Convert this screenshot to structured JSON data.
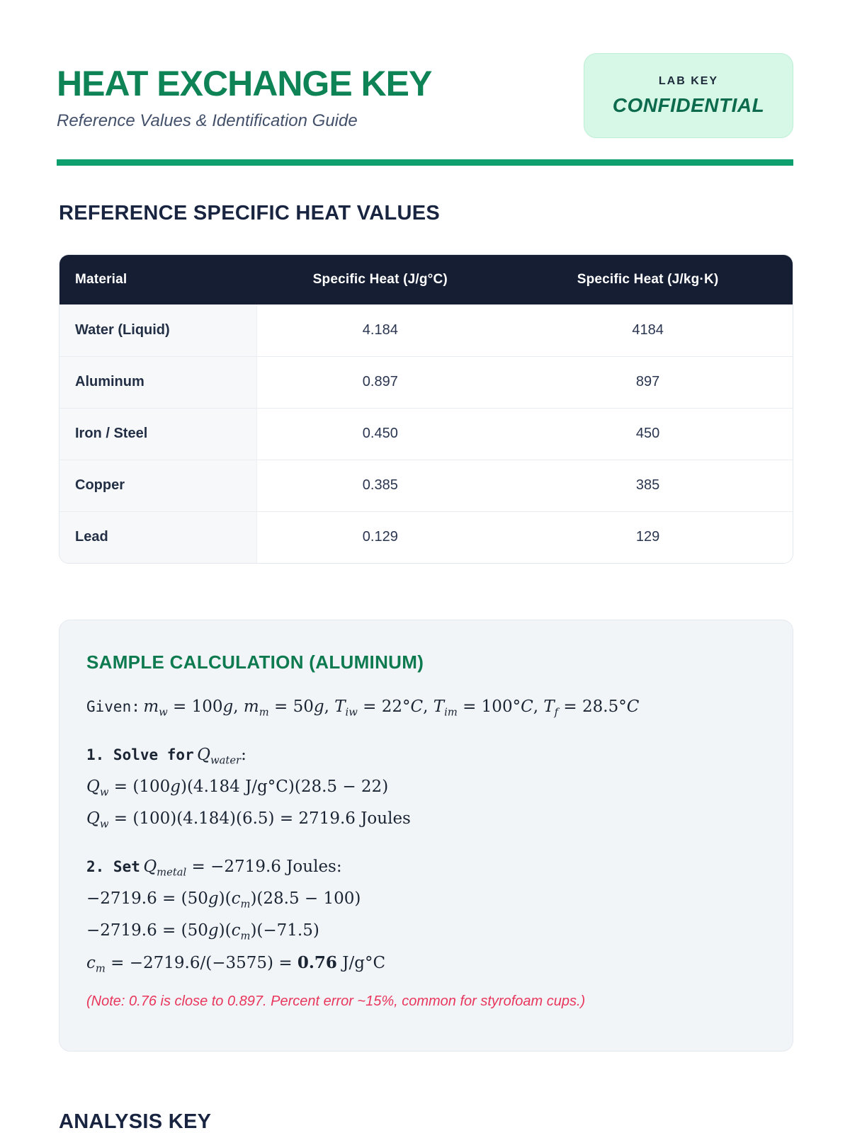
{
  "header": {
    "title": "HEAT EXCHANGE KEY",
    "subtitle": "Reference Values & Identification Guide",
    "badge": {
      "label": "LAB KEY",
      "text": "CONFIDENTIAL"
    }
  },
  "colors": {
    "title_green": "#0E8456",
    "rule_green": "#0E9F6E",
    "confidential_green": "#0B6B4C",
    "badge_bg": "#D7F7E7",
    "table_header_navy": "#161E33",
    "heading_navy": "#182440",
    "note_red": "#E8365C",
    "calc_box_bg": "#F2F5F8"
  },
  "reference_section": {
    "title": "REFERENCE SPECIFIC HEAT VALUES",
    "table": {
      "columns": [
        "Material",
        "Specific Heat (J/g°C)",
        "Specific Heat (J/kg·K)"
      ],
      "rows": [
        {
          "material": "Water (Liquid)",
          "j_g": "4.184",
          "j_kg": "4184"
        },
        {
          "material": "Aluminum",
          "j_g": "0.897",
          "j_kg": "897"
        },
        {
          "material": "Iron / Steel",
          "j_g": "0.450",
          "j_kg": "450"
        },
        {
          "material": "Copper",
          "j_g": "0.385",
          "j_kg": "385"
        },
        {
          "material": "Lead",
          "j_g": "0.129",
          "j_kg": "129"
        }
      ]
    }
  },
  "sample_calc": {
    "title": "SAMPLE CALCULATION (ALUMINUM)",
    "given_label": "Given:",
    "given_math": "<i>m<sub>w</sub></i> = 100<i>g</i>, <i>m<sub>m</sub></i> = 50<i>g</i>, <i>T<sub>iw</sub></i> = 22°<i>C</i>, <i>T<sub>im</sub></i> = 100°<i>C</i>, <i>T<sub>f</sub></i> = 28.5°<i>C</i>",
    "step1": {
      "label": "1. Solve for",
      "label_math": "<i>Q<sub>water</sub></i>:",
      "lines": [
        "<i>Q<sub>w</sub></i> = (100<i>g</i>)(4.184 J/g°C)(28.5 − 22)",
        "<i>Q<sub>w</sub></i> = (100)(4.184)(6.5) = 2719.6 Joules"
      ]
    },
    "step2": {
      "label": "2. Set",
      "label_math": "<i>Q<sub>metal</sub></i> = −2719.6 Joules:",
      "lines": [
        "−2719.6 = (50<i>g</i>)(<i>c<sub>m</sub></i>)(28.5 − 100)",
        "−2719.6 = (50<i>g</i>)(<i>c<sub>m</sub></i>)(−71.5)",
        "<i>c<sub>m</sub></i> = −2719.6/(−3575) = <b>0.76</b> J/g°C"
      ]
    },
    "note": "(Note: 0.76 is close to 0.897. Percent error ~15%, common for styrofoam cups.)"
  },
  "analysis_section": {
    "title": "ANALYSIS KEY"
  }
}
